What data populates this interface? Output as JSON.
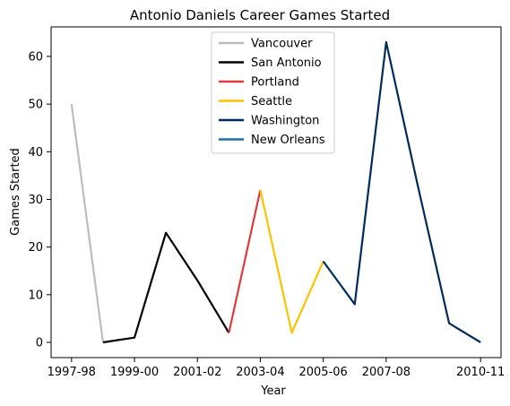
{
  "chart_data": {
    "type": "line",
    "title": "Antonio Daniels Career Games Started",
    "xlabel": "Year",
    "ylabel": "Games Started",
    "x_tick_labels": [
      "1997-98",
      "1999-00",
      "2001-02",
      "2003-04",
      "2005-06",
      "2007-08",
      "2010-11"
    ],
    "y_ticks": [
      0,
      10,
      20,
      30,
      40,
      50,
      60
    ],
    "ylim": [
      -3.2,
      66.2
    ],
    "grid": false,
    "legend_position": "top-center",
    "series": [
      {
        "name": "Vancouver",
        "color": "#bdbdbd",
        "x": [
          "1997-98",
          "1998-99"
        ],
        "y": [
          50,
          0
        ]
      },
      {
        "name": "San Antonio",
        "color": "#000000",
        "x": [
          "1998-99",
          "1999-00",
          "2000-01",
          "2001-02",
          "2002-03"
        ],
        "y": [
          0,
          1,
          23,
          13,
          2
        ]
      },
      {
        "name": "Portland",
        "color": "#e03a3e",
        "x": [
          "2002-03",
          "2003-04"
        ],
        "y": [
          2,
          32
        ]
      },
      {
        "name": "Seattle",
        "color": "#ffc200",
        "x": [
          "2003-04",
          "2004-05",
          "2005-06"
        ],
        "y": [
          32,
          2,
          17
        ]
      },
      {
        "name": "Washington",
        "color": "#002b5c",
        "x": [
          "2005-06",
          "2006-07",
          "2007-08",
          "2008-09",
          "2009-10",
          "2010-11"
        ],
        "y": [
          17,
          8,
          63,
          33,
          4,
          0
        ]
      },
      {
        "name": "New Orleans",
        "color": "#1d6fa8",
        "x": [],
        "y": []
      }
    ]
  }
}
